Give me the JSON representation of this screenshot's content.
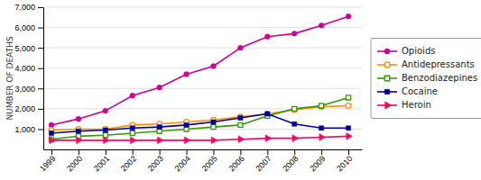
{
  "chart_data": {
    "type": "line",
    "y_label": "NUMBER OF DEATHS",
    "x": [
      1999,
      2000,
      2001,
      2002,
      2003,
      2004,
      2005,
      2006,
      2007,
      2008,
      2009,
      2010
    ],
    "series": [
      {
        "name": "Opioids",
        "color": "#cc0099",
        "marker": "circle",
        "values": [
          1200,
          1500,
          1900,
          2650,
          3050,
          3700,
          4100,
          5000,
          5550,
          5700,
          6100,
          6550
        ]
      },
      {
        "name": "Antidepressants",
        "color": "#ff8c00",
        "marker": "circle-open",
        "values": [
          950,
          1000,
          1000,
          1200,
          1250,
          1350,
          1450,
          1600,
          1750,
          1950,
          2100,
          2150
        ]
      },
      {
        "name": "Benzodiazepines",
        "color": "#339900",
        "marker": "square-open",
        "values": [
          500,
          650,
          700,
          800,
          900,
          1000,
          1100,
          1200,
          1650,
          2000,
          2150,
          2550
        ]
      },
      {
        "name": "Cocaine",
        "color": "#000099",
        "marker": "square",
        "values": [
          800,
          900,
          950,
          1050,
          1100,
          1200,
          1350,
          1550,
          1750,
          1250,
          1050,
          1050
        ]
      },
      {
        "name": "Heroin",
        "color": "#ff0066",
        "marker": "triangle-right",
        "values": [
          450,
          450,
          450,
          450,
          450,
          450,
          450,
          500,
          550,
          550,
          600,
          650
        ]
      }
    ],
    "xlim": [
      1998.7,
      2010.5
    ],
    "xticks": [
      1999,
      2000,
      2001,
      2002,
      2003,
      2004,
      2005,
      2006,
      2007,
      2008,
      2009,
      2010
    ],
    "ylim": [
      0,
      7000
    ],
    "yticks": [
      {
        "value": 1000,
        "label": "1,000"
      },
      {
        "value": 2000,
        "label": "2,000"
      },
      {
        "value": 3000,
        "label": "3,000"
      },
      {
        "value": 4000,
        "label": "4,000"
      },
      {
        "value": 5000,
        "label": "5,000"
      },
      {
        "value": 6000,
        "label": "6,000"
      },
      {
        "value": 7000,
        "label": "7,000"
      }
    ],
    "grid": true,
    "legend": "right"
  }
}
